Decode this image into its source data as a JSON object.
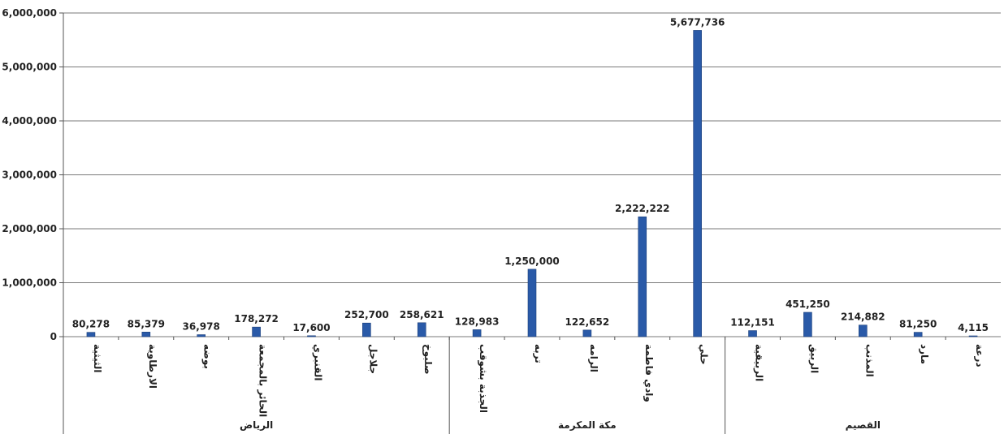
{
  "chart_data": {
    "type": "bar",
    "title": "",
    "xlabel": "",
    "ylabel": "",
    "ylim": [
      0,
      6000000
    ],
    "yticks": [
      0,
      1000000,
      2000000,
      3000000,
      4000000,
      5000000,
      6000000
    ],
    "ytick_labels": [
      "0",
      "1,000,000",
      "2,000,000",
      "3,000,000",
      "4,000,000",
      "5,000,000",
      "6,000,000"
    ],
    "grid": true,
    "legend": "none",
    "bar_color": "#2a5aa8",
    "categories": [
      "الثيثية",
      "الارطاوية",
      "بوضه",
      "الحائر بالمجمعة",
      "القنبري",
      "جلاجل",
      "صلبوخ",
      "الجذبة بشوقب",
      "تربه",
      "الرامه",
      "وادي فاطمة",
      "حلي",
      "الربيقية",
      "الربيق",
      "المذنب",
      "مارد",
      "درعة"
    ],
    "values": [
      80278,
      85379,
      36978,
      178272,
      17600,
      252700,
      258621,
      128983,
      1250000,
      122652,
      2222222,
      5677736,
      112151,
      451250,
      214882,
      81250,
      4115
    ],
    "value_labels": [
      "80,278",
      "85,379",
      "36,978",
      "178,272",
      "17,600",
      "252,700",
      "258,621",
      "128,983",
      "1,250,000",
      "122,652",
      "2,222,222",
      "5,677,736",
      "112,151",
      "451,250",
      "214,882",
      "81,250",
      "4,115"
    ],
    "groups": [
      {
        "name": "الرياض",
        "start": 0,
        "end": 6
      },
      {
        "name": "مكة المكرمة",
        "start": 7,
        "end": 11
      },
      {
        "name": "القصيم",
        "start": 12,
        "end": 16
      }
    ]
  }
}
